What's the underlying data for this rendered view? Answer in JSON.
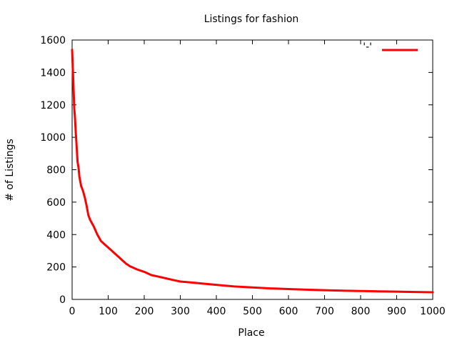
{
  "chart_data": {
    "type": "line",
    "title": "Listings for fashion",
    "xlabel": "Place",
    "ylabel": "# of Listings",
    "xlim": [
      0,
      1000
    ],
    "ylim": [
      0,
      1600
    ],
    "x_ticks": [
      0,
      100,
      200,
      300,
      400,
      500,
      600,
      700,
      800,
      900,
      1000
    ],
    "y_ticks": [
      0,
      200,
      400,
      600,
      800,
      1000,
      1200,
      1400,
      1600
    ],
    "grid": false,
    "legend": {
      "position": "top-right",
      "label": "'-'"
    },
    "series": [
      {
        "color": "#ff0000",
        "x": [
          0,
          2,
          4,
          6,
          8,
          10,
          12,
          15,
          18,
          20,
          25,
          30,
          35,
          40,
          45,
          50,
          55,
          60,
          70,
          80,
          90,
          100,
          110,
          120,
          130,
          140,
          150,
          160,
          170,
          180,
          200,
          220,
          240,
          260,
          280,
          300,
          330,
          360,
          400,
          450,
          500,
          550,
          600,
          650,
          700,
          750,
          800,
          850,
          900,
          950,
          1000
        ],
        "values": [
          1540,
          1420,
          1300,
          1180,
          1120,
          1040,
          960,
          850,
          810,
          760,
          700,
          670,
          630,
          580,
          520,
          490,
          470,
          450,
          400,
          360,
          340,
          320,
          300,
          280,
          260,
          240,
          220,
          205,
          195,
          185,
          170,
          150,
          140,
          130,
          120,
          110,
          105,
          98,
          90,
          80,
          74,
          68,
          64,
          60,
          57,
          54,
          52,
          50,
          48,
          46,
          44
        ]
      }
    ]
  }
}
